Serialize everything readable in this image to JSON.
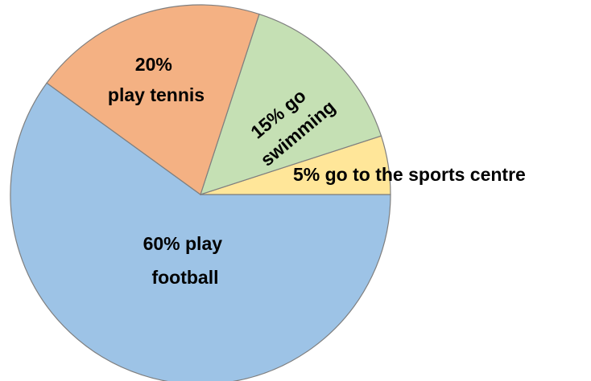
{
  "chart_data": {
    "type": "pie",
    "title": "",
    "slices": [
      {
        "label": "60% play football",
        "value": 60,
        "color": "#9dc3e6",
        "lines": [
          "60% play",
          "football"
        ]
      },
      {
        "label": "5% go to the sports centre",
        "value": 5,
        "color": "#ffe699",
        "lines": [
          "5% go to the sports centre"
        ]
      },
      {
        "label": "15% go swimming",
        "value": 15,
        "color": "#c5e0b4",
        "lines": [
          "15% go",
          "swimming"
        ]
      },
      {
        "label": "20% play tennis",
        "value": 20,
        "color": "#f4b183",
        "lines": [
          "20%",
          "play tennis"
        ]
      }
    ]
  }
}
